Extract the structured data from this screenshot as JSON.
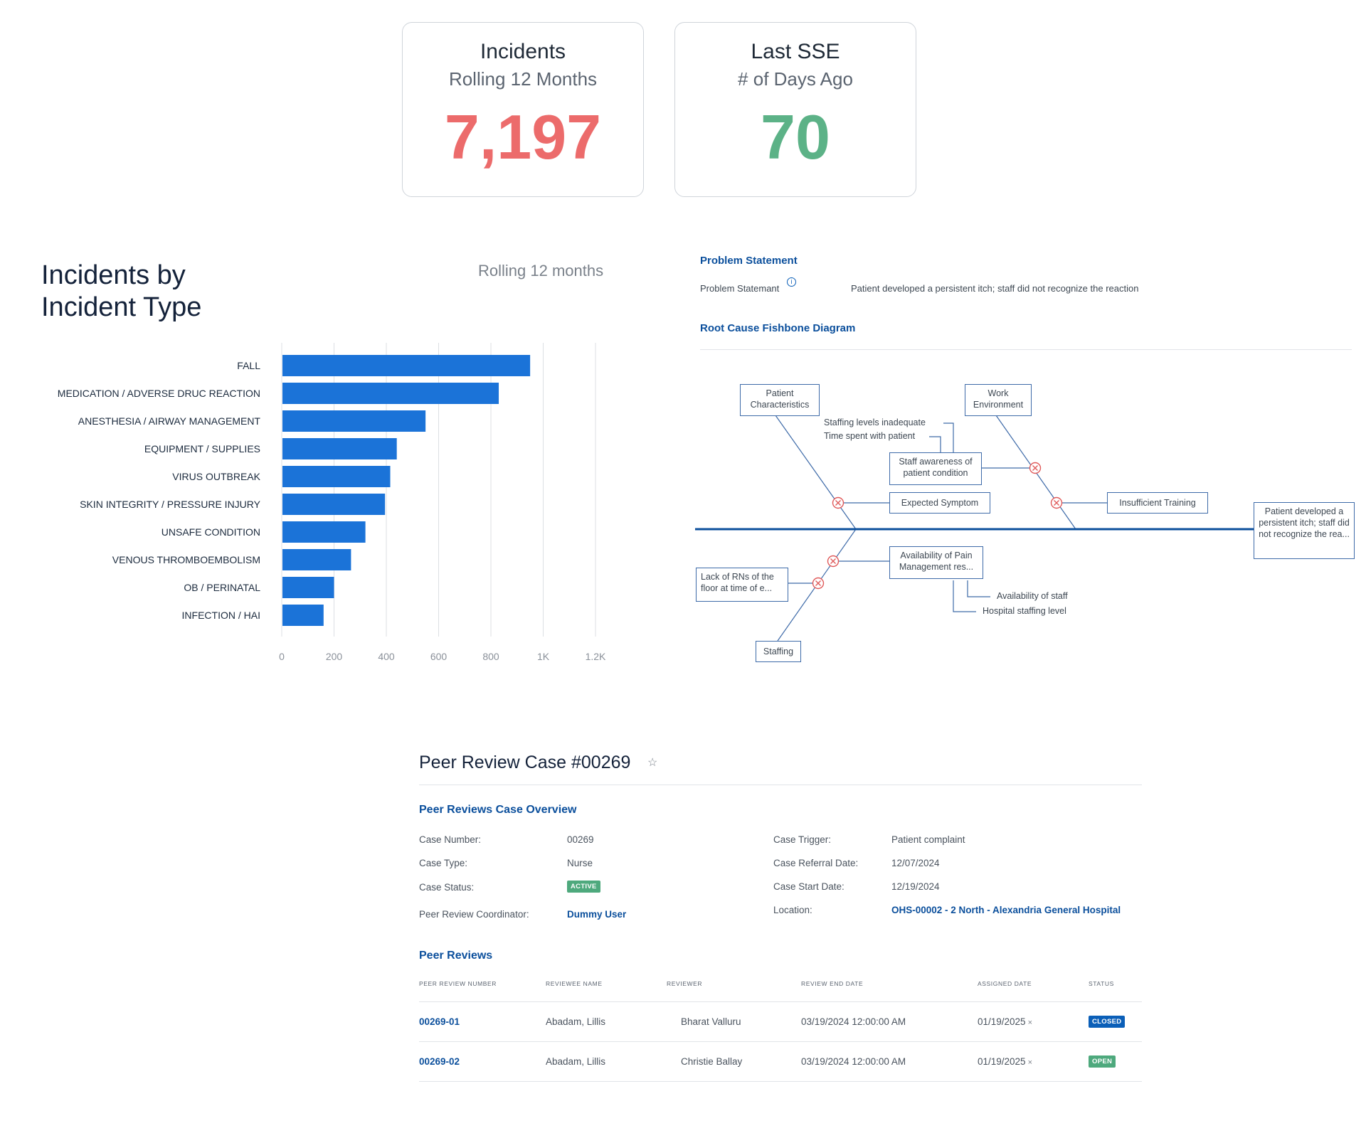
{
  "kpis": [
    {
      "title": "Incidents",
      "subtitle": "Rolling 12 Months",
      "value": "7,197",
      "color": "#ec6b6b"
    },
    {
      "title": "Last SSE",
      "subtitle": "# of Days Ago",
      "value": "70",
      "color": "#5cb287"
    }
  ],
  "chart": {
    "title": "Incidents by Incident Type",
    "subtitle": "Rolling 12 months"
  },
  "chart_data": {
    "type": "bar",
    "orientation": "horizontal",
    "title": "Incidents by Incident Type",
    "subtitle": "Rolling 12 months",
    "categories": [
      "FALL",
      "MEDICATION / ADVERSE DRUC REACTION",
      "ANESTHESIA / AIRWAY MANAGEMENT",
      "EQUIPMENT / SUPPLIES",
      "VIRUS OUTBREAK",
      "SKIN INTEGRITY / PRESSURE INJURY",
      "UNSAFE CONDITION",
      "VENOUS THROMBOEMBOLISM",
      "OB / PERINATAL",
      "INFECTION / HAI"
    ],
    "values": [
      950,
      830,
      550,
      440,
      415,
      395,
      320,
      265,
      200,
      160
    ],
    "xlim": [
      0,
      1200
    ],
    "xticks": [
      0,
      200,
      400,
      600,
      800,
      1000,
      1200
    ],
    "xtick_labels": [
      "0",
      "200",
      "400",
      "600",
      "800",
      "1K",
      "1.2K"
    ],
    "grid": true,
    "bar_color": "#1b73d8"
  },
  "problem": {
    "heading": "Problem Statement",
    "label": "Problem Statemant",
    "info_icon": "info-icon",
    "value": "Patient developed a persistent itch; staff did not recognize the reaction"
  },
  "fishbone": {
    "heading": "Root Cause Fishbone Diagram",
    "categories": {
      "patient": "Patient Characteristics",
      "work": "Work Environment",
      "staffing": "Staffing",
      "lack_rns": "Lack of RNs of the floor at time of e..."
    },
    "causes": {
      "staff_awareness": "Staff awareness of patient condition",
      "expected_symptom": "Expected Symptom",
      "insufficient_training": "Insufficient Training",
      "pain_mgmt": "Availability of Pain Management res..."
    },
    "sub_causes": {
      "staffing_levels": "Staffing levels inadequate",
      "time_spent": "Time spent with patient",
      "availability_staff": "Availability of staff",
      "hospital_staffing": "Hospital staffing level"
    },
    "head": "Patient developed a persistent itch; staff did not recognize the rea...",
    "spine_color": "#0b4f9c",
    "marker_color": "#e05a5a"
  },
  "peer_review": {
    "title": "Peer Review Case #00269",
    "star_icon": "star-icon",
    "overview_heading": "Peer Reviews Case Overview",
    "fields_left": [
      {
        "label": "Case Number:",
        "value": "00269"
      },
      {
        "label": "Case Type:",
        "value": "Nurse"
      },
      {
        "label": "Case Status:",
        "value": "ACTIVE"
      },
      {
        "label": "Peer Review Coordinator:",
        "value": "Dummy User"
      }
    ],
    "fields_right": [
      {
        "label": "Case Trigger:",
        "value": "Patient complaint"
      },
      {
        "label": "Case Referral Date:",
        "value": "12/07/2024"
      },
      {
        "label": "Case Start Date:",
        "value": "12/19/2024"
      },
      {
        "label": "Location:",
        "value": "OHS-00002 - 2 North - Alexandria General Hospital"
      }
    ],
    "status_active_color": "#4ea97d",
    "reviews_heading": "Peer Reviews",
    "columns": [
      "PEER REVIEW NUMBER",
      "REVIEWEE NAME",
      "REVIEWER",
      "REVIEW END DATE",
      "ASSIGNED DATE",
      "STATUS"
    ],
    "rows": [
      {
        "number": "00269-01",
        "reviewee": "Abadam, Lillis",
        "reviewer": "Bharat Valluru",
        "end_date": "03/19/2024 12:00:00 AM",
        "assigned": "01/19/2025",
        "status": "CLOSED",
        "status_color": "#0b5fb8"
      },
      {
        "number": "00269-02",
        "reviewee": "Abadam, Lillis",
        "reviewer": "Christie Ballay",
        "end_date": "03/19/2024 12:00:00 AM",
        "assigned": "01/19/2025",
        "status": "OPEN",
        "status_color": "#4ea97d"
      }
    ],
    "remove_icon": "close-icon"
  }
}
